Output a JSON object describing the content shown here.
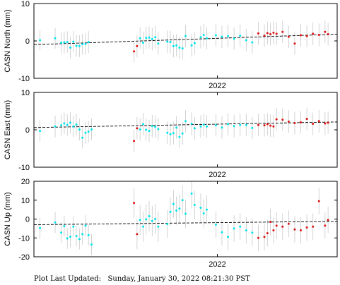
{
  "footer": {
    "label": "Plot Last Updated:",
    "timestamp": "Sunday, January 30, 2022 08:21:30 PST"
  },
  "colors": {
    "cyan": "#00e5ee",
    "red": "#dd1111",
    "errorbar": "#c8c8c8",
    "trend": "#000000"
  },
  "chart_data": [
    {
      "type": "scatter",
      "ylabel": "CASN North (mm)",
      "xtick_label": "2022",
      "ylim": [
        -10,
        10
      ],
      "yticks": [
        -10,
        0,
        10
      ],
      "trend": [
        [
          0,
          -1.0
        ],
        [
          1,
          1.8
        ]
      ],
      "series": [
        {
          "color": "cyan",
          "points": [
            [
              0.02,
              0.2,
              2.7
            ],
            [
              0.07,
              0.7,
              2.8
            ],
            [
              0.09,
              -0.5,
              2.8
            ],
            [
              0.1,
              -0.4,
              2.9
            ],
            [
              0.11,
              -0.3,
              2.9
            ],
            [
              0.12,
              -1.8,
              2.9
            ],
            [
              0.13,
              -0.2,
              2.8
            ],
            [
              0.14,
              -1.3,
              2.9
            ],
            [
              0.15,
              -1.4,
              2.9
            ],
            [
              0.16,
              -0.9,
              2.8
            ],
            [
              0.17,
              -0.8,
              2.9
            ],
            [
              0.18,
              -0.3,
              2.9
            ],
            [
              0.35,
              0.7,
              3.0
            ],
            [
              0.36,
              -0.5,
              3.0
            ],
            [
              0.37,
              0.8,
              3.0
            ],
            [
              0.38,
              0.9,
              3.0
            ],
            [
              0.39,
              0.5,
              3.0
            ],
            [
              0.4,
              1.0,
              3.0
            ],
            [
              0.41,
              -0.7,
              3.0
            ],
            [
              0.44,
              -0.2,
              3.0
            ],
            [
              0.45,
              -0.3,
              3.0
            ],
            [
              0.46,
              -1.4,
              3.0
            ],
            [
              0.47,
              -1.2,
              3.0
            ],
            [
              0.48,
              -1.8,
              3.0
            ],
            [
              0.49,
              -2.0,
              3.0
            ],
            [
              0.5,
              1.3,
              3.0
            ],
            [
              0.52,
              -1.2,
              3.0
            ],
            [
              0.53,
              -0.6,
              3.0
            ],
            [
              0.55,
              1.0,
              3.0
            ],
            [
              0.56,
              1.6,
              3.0
            ],
            [
              0.57,
              0.7,
              3.0
            ],
            [
              0.6,
              1.5,
              3.0
            ],
            [
              0.62,
              1.1,
              3.0
            ],
            [
              0.64,
              1.3,
              3.0
            ],
            [
              0.66,
              0.6,
              3.0
            ],
            [
              0.68,
              1.4,
              3.0
            ],
            [
              0.7,
              0.2,
              3.0
            ],
            [
              0.72,
              -0.4,
              3.0
            ]
          ]
        },
        {
          "color": "red",
          "points": [
            [
              0.33,
              -2.8,
              3.0
            ],
            [
              0.34,
              -1.4,
              3.0
            ],
            [
              0.74,
              2.0,
              3.0
            ],
            [
              0.76,
              1.4,
              3.0
            ],
            [
              0.77,
              2.1,
              3.0
            ],
            [
              0.78,
              1.8,
              3.0
            ],
            [
              0.79,
              2.2,
              3.0
            ],
            [
              0.8,
              1.9,
              3.0
            ],
            [
              0.82,
              2.4,
              3.0
            ],
            [
              0.84,
              1.1,
              3.0
            ],
            [
              0.86,
              -0.7,
              3.0
            ],
            [
              0.88,
              1.5,
              3.0
            ],
            [
              0.9,
              1.3,
              3.0
            ],
            [
              0.92,
              1.9,
              3.0
            ],
            [
              0.94,
              1.6,
              3.0
            ],
            [
              0.96,
              2.4,
              3.0
            ],
            [
              0.97,
              1.8,
              3.0
            ]
          ]
        }
      ]
    },
    {
      "type": "scatter",
      "ylabel": "CASN East (mm)",
      "xtick_label": "2022",
      "ylim": [
        -10,
        10
      ],
      "yticks": [
        -10,
        0,
        10
      ],
      "trend": [
        [
          0,
          0.6
        ],
        [
          1,
          2.1
        ]
      ],
      "series": [
        {
          "color": "cyan",
          "points": [
            [
              0.02,
              -0.3,
              2.9
            ],
            [
              0.07,
              0.9,
              2.9
            ],
            [
              0.09,
              1.2,
              2.9
            ],
            [
              0.1,
              1.7,
              2.9
            ],
            [
              0.11,
              1.3,
              2.9
            ],
            [
              0.12,
              1.9,
              2.9
            ],
            [
              0.13,
              0.9,
              2.9
            ],
            [
              0.14,
              1.4,
              2.9
            ],
            [
              0.15,
              0.1,
              2.9
            ],
            [
              0.16,
              -2.1,
              2.9
            ],
            [
              0.17,
              -0.8,
              2.9
            ],
            [
              0.18,
              -0.5,
              2.9
            ],
            [
              0.19,
              0.1,
              2.9
            ],
            [
              0.35,
              0.1,
              3.0
            ],
            [
              0.36,
              1.5,
              3.0
            ],
            [
              0.37,
              0.0,
              3.0
            ],
            [
              0.38,
              -0.3,
              3.0
            ],
            [
              0.39,
              1.0,
              3.0
            ],
            [
              0.4,
              0.8,
              3.0
            ],
            [
              0.41,
              0.2,
              3.0
            ],
            [
              0.44,
              -0.8,
              3.0
            ],
            [
              0.45,
              -1.2,
              3.0
            ],
            [
              0.46,
              -0.9,
              3.0
            ],
            [
              0.47,
              0.6,
              3.0
            ],
            [
              0.48,
              -1.9,
              3.0
            ],
            [
              0.49,
              -1.0,
              3.0
            ],
            [
              0.5,
              2.3,
              3.0
            ],
            [
              0.52,
              1.6,
              3.0
            ],
            [
              0.53,
              0.4,
              3.0
            ],
            [
              0.55,
              0.9,
              3.0
            ],
            [
              0.56,
              1.4,
              3.0
            ],
            [
              0.57,
              0.9,
              3.0
            ],
            [
              0.6,
              1.2,
              3.0
            ],
            [
              0.62,
              0.6,
              3.0
            ],
            [
              0.64,
              1.5,
              3.0
            ],
            [
              0.66,
              1.0,
              3.0
            ],
            [
              0.68,
              1.3,
              3.0
            ],
            [
              0.7,
              1.3,
              3.0
            ],
            [
              0.72,
              0.5,
              3.0
            ]
          ]
        },
        {
          "color": "red",
          "points": [
            [
              0.33,
              -3.0,
              3.0
            ],
            [
              0.34,
              0.4,
              3.0
            ],
            [
              0.74,
              1.3,
              3.0
            ],
            [
              0.76,
              1.2,
              3.0
            ],
            [
              0.77,
              1.5,
              3.0
            ],
            [
              0.78,
              1.1,
              3.0
            ],
            [
              0.79,
              0.9,
              3.0
            ],
            [
              0.8,
              2.8,
              3.0
            ],
            [
              0.82,
              2.7,
              3.0
            ],
            [
              0.84,
              2.2,
              3.0
            ],
            [
              0.86,
              1.8,
              3.0
            ],
            [
              0.88,
              2.0,
              3.0
            ],
            [
              0.9,
              2.9,
              3.0
            ],
            [
              0.92,
              1.6,
              3.0
            ],
            [
              0.94,
              2.3,
              3.0
            ],
            [
              0.96,
              1.7,
              3.0
            ],
            [
              0.97,
              1.9,
              3.0
            ]
          ]
        }
      ]
    },
    {
      "type": "scatter",
      "ylabel": "CASN Up (mm)",
      "xtick_label": "2022",
      "ylim": [
        -20,
        20
      ],
      "yticks": [
        -20,
        -10,
        0,
        10,
        20
      ],
      "trend": [
        [
          0,
          -3.0
        ],
        [
          1,
          -1.2
        ]
      ],
      "series": [
        {
          "color": "cyan",
          "points": [
            [
              0.02,
              -4.8,
              5.5
            ],
            [
              0.07,
              -1.8,
              5.5
            ],
            [
              0.09,
              -7.2,
              5.5
            ],
            [
              0.1,
              -3.8,
              5.5
            ],
            [
              0.11,
              -10.3,
              5.5
            ],
            [
              0.12,
              -9.4,
              5.5
            ],
            [
              0.13,
              -4.0,
              5.5
            ],
            [
              0.14,
              -9.0,
              5.5
            ],
            [
              0.15,
              -10.6,
              5.5
            ],
            [
              0.16,
              -8.0,
              5.5
            ],
            [
              0.17,
              -3.5,
              5.5
            ],
            [
              0.18,
              -8.5,
              5.5
            ],
            [
              0.19,
              -13.5,
              5.5
            ],
            [
              0.35,
              -0.5,
              8.0
            ],
            [
              0.36,
              -4.0,
              8.0
            ],
            [
              0.37,
              -0.2,
              8.0
            ],
            [
              0.38,
              1.5,
              8.0
            ],
            [
              0.39,
              -1.0,
              8.0
            ],
            [
              0.4,
              0.0,
              8.0
            ],
            [
              0.41,
              -4.0,
              8.0
            ],
            [
              0.44,
              -2.6,
              7.5
            ],
            [
              0.45,
              3.8,
              7.5
            ],
            [
              0.46,
              8.0,
              7.5
            ],
            [
              0.47,
              4.5,
              7.5
            ],
            [
              0.48,
              5.5,
              7.5
            ],
            [
              0.49,
              10.0,
              7.5
            ],
            [
              0.5,
              2.8,
              7.5
            ],
            [
              0.52,
              13.5,
              7.5
            ],
            [
              0.53,
              7.5,
              7.5
            ],
            [
              0.55,
              6.0,
              7.5
            ],
            [
              0.56,
              3.0,
              7.5
            ],
            [
              0.57,
              5.0,
              7.5
            ],
            [
              0.6,
              -3.0,
              7.0
            ],
            [
              0.62,
              -7.0,
              7.0
            ],
            [
              0.64,
              -9.5,
              7.0
            ],
            [
              0.66,
              -5.0,
              7.0
            ],
            [
              0.68,
              -4.0,
              7.0
            ],
            [
              0.7,
              -6.0,
              7.0
            ],
            [
              0.72,
              -7.2,
              7.0
            ]
          ]
        },
        {
          "color": "red",
          "points": [
            [
              0.33,
              8.5,
              8.0
            ],
            [
              0.34,
              -8.0,
              8.0
            ],
            [
              0.74,
              -10.0,
              7.0
            ],
            [
              0.76,
              -9.5,
              7.0
            ],
            [
              0.77,
              -7.5,
              7.0
            ],
            [
              0.78,
              -1.5,
              7.0
            ],
            [
              0.79,
              -6.0,
              7.0
            ],
            [
              0.8,
              -3.5,
              7.0
            ],
            [
              0.82,
              -4.0,
              7.0
            ],
            [
              0.84,
              -2.5,
              7.0
            ],
            [
              0.86,
              -5.5,
              7.0
            ],
            [
              0.88,
              -6.0,
              7.0
            ],
            [
              0.9,
              -4.5,
              7.0
            ],
            [
              0.92,
              -4.0,
              7.0
            ],
            [
              0.94,
              9.5,
              7.0
            ],
            [
              0.96,
              -3.5,
              7.0
            ],
            [
              0.97,
              -0.5,
              7.0
            ]
          ]
        }
      ]
    }
  ]
}
